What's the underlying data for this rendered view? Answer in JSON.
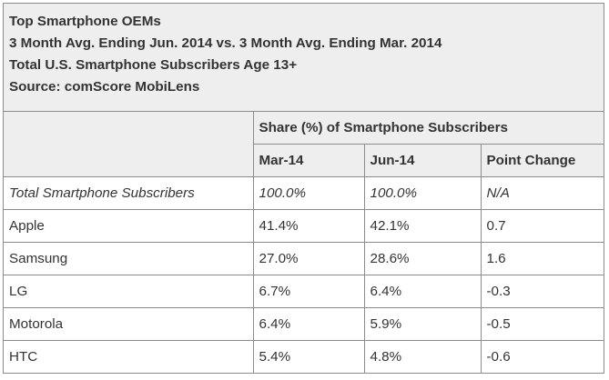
{
  "header": {
    "title": "Top Smartphone OEMs",
    "period": "3 Month Avg. Ending Jun. 2014 vs. 3 Month Avg. Ending Mar. 2014",
    "population": "Total U.S. Smartphone Subscribers Age 13+",
    "source": "Source: comScore MobiLens"
  },
  "columns": {
    "group_label": "Share (%) of Smartphone Subscribers",
    "mar": "Mar-14",
    "jun": "Jun-14",
    "change": "Point Change"
  },
  "rows": [
    {
      "label": "Total Smartphone Subscribers",
      "mar": "100.0%",
      "jun": "100.0%",
      "change": "N/A"
    },
    {
      "label": "Apple",
      "mar": "41.4%",
      "jun": "42.1%",
      "change": "0.7"
    },
    {
      "label": "Samsung",
      "mar": "27.0%",
      "jun": "28.6%",
      "change": "1.6"
    },
    {
      "label": "LG",
      "mar": "6.7%",
      "jun": "6.4%",
      "change": "-0.3"
    },
    {
      "label": "Motorola",
      "mar": "6.4%",
      "jun": "5.9%",
      "change": "-0.5"
    },
    {
      "label": "HTC",
      "mar": "5.4%",
      "jun": "4.8%",
      "change": "-0.6"
    }
  ],
  "colors": {
    "border": "#8c8c8c",
    "header_bg": "#eeeeee",
    "text": "#333333"
  },
  "chart_data": {
    "type": "table",
    "title": "Top Smartphone OEMs",
    "columns": [
      "",
      "Mar-14",
      "Jun-14",
      "Point Change"
    ],
    "rows": [
      [
        "Total Smartphone Subscribers",
        100.0,
        100.0,
        "N/A"
      ],
      [
        "Apple",
        41.4,
        42.1,
        0.7
      ],
      [
        "Samsung",
        27.0,
        28.6,
        1.6
      ],
      [
        "LG",
        6.7,
        6.4,
        -0.3
      ],
      [
        "Motorola",
        6.4,
        5.9,
        -0.5
      ],
      [
        "HTC",
        5.4,
        4.8,
        -0.6
      ]
    ]
  }
}
